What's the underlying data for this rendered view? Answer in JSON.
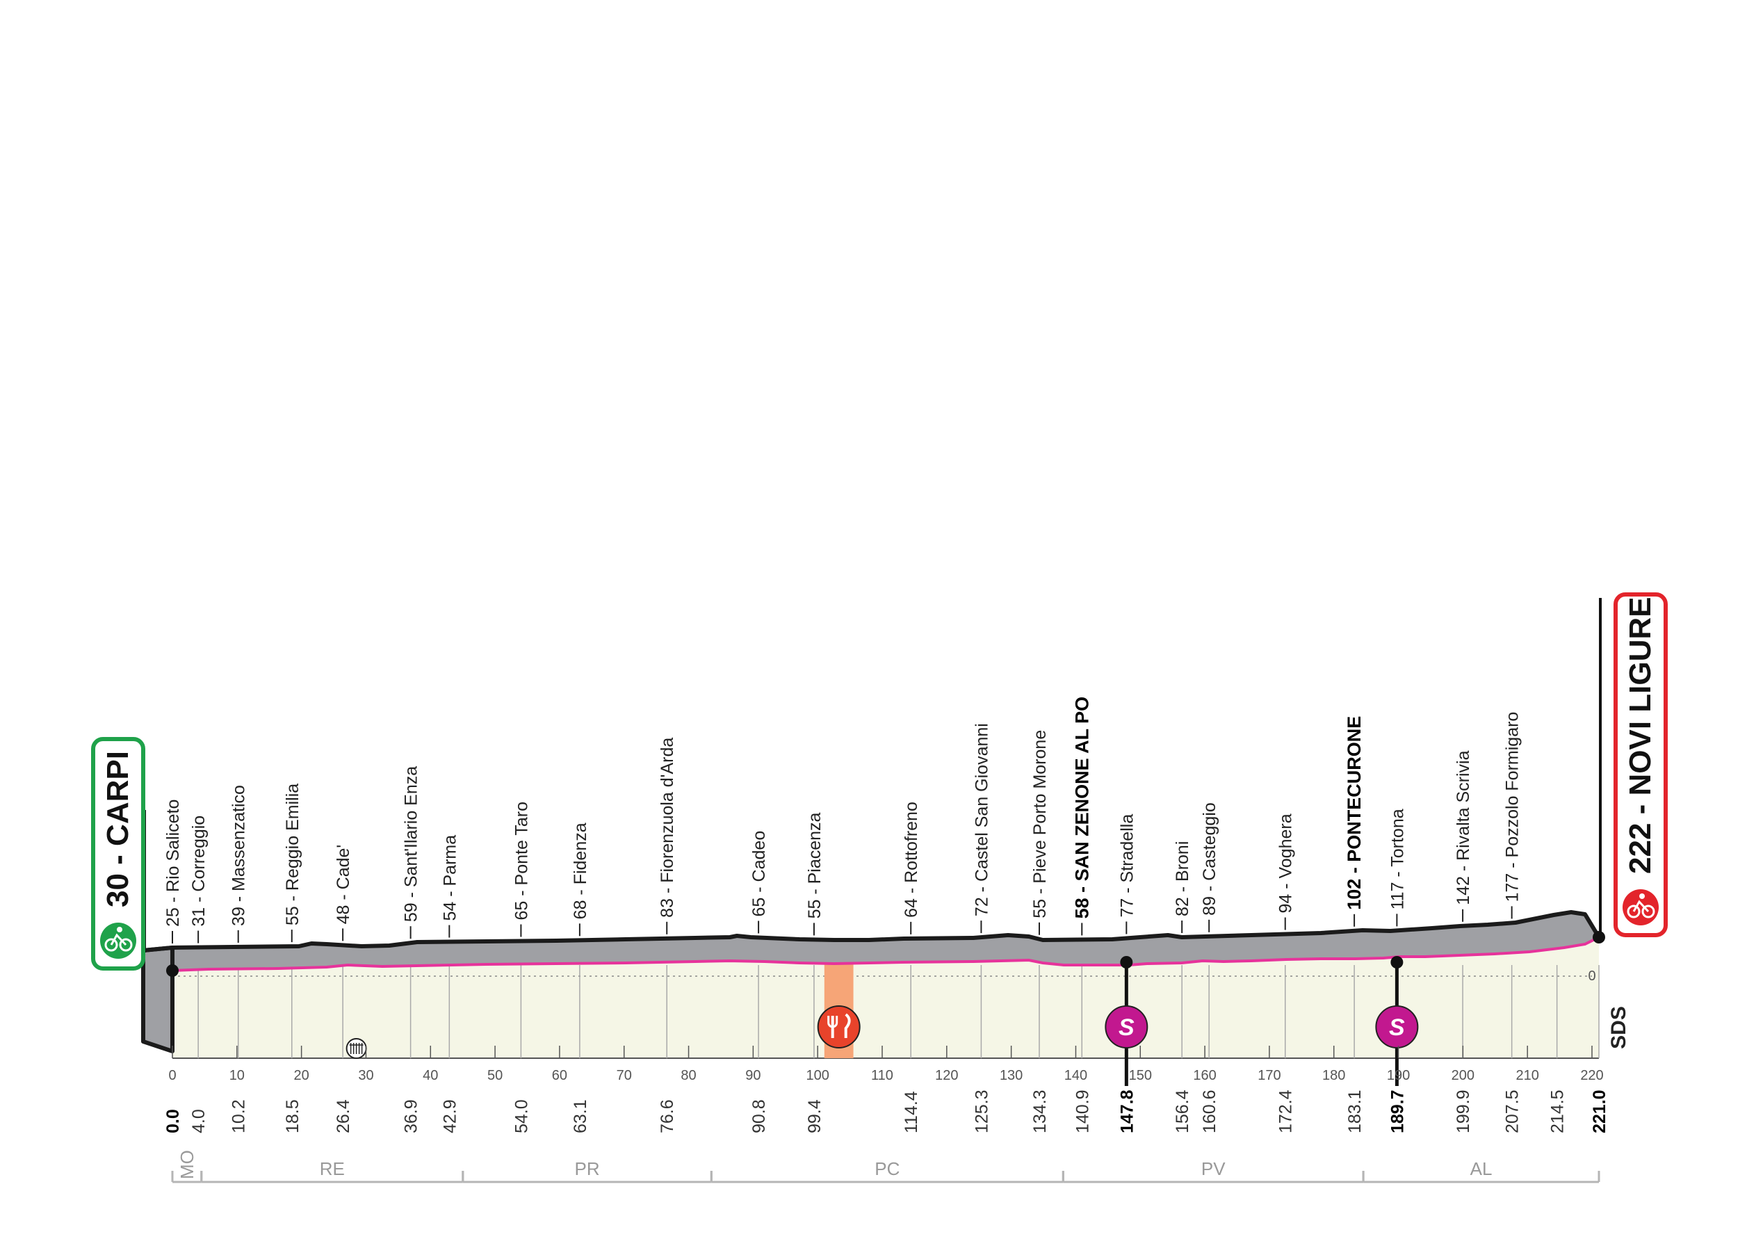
{
  "start": {
    "label": "30 - CARPI",
    "km": 0.0,
    "altitude": 30
  },
  "finish": {
    "label": "222 - NOVI LIGURE",
    "km": 221.0,
    "altitude": 222
  },
  "zero_label": "0",
  "sds_label": "SDS",
  "places": [
    {
      "km": 0.0,
      "label": "25 - Rio Saliceto",
      "bold": false
    },
    {
      "km": 4.0,
      "label": "31 - Correggio",
      "bold": false
    },
    {
      "km": 10.2,
      "label": "39 - Massenzatico",
      "bold": false
    },
    {
      "km": 18.5,
      "label": "55 - Reggio Emilia",
      "bold": false
    },
    {
      "km": 26.4,
      "label": "48 - Cade'",
      "bold": false
    },
    {
      "km": 36.9,
      "label": "59 - Sant'Ilario Enza",
      "bold": false
    },
    {
      "km": 42.9,
      "label": "54 - Parma",
      "bold": false
    },
    {
      "km": 54.0,
      "label": "65 - Ponte Taro",
      "bold": false
    },
    {
      "km": 63.1,
      "label": "68 - Fidenza",
      "bold": false
    },
    {
      "km": 76.6,
      "label": "83 - Fiorenzuola d'Arda",
      "bold": false
    },
    {
      "km": 90.8,
      "label": "65 - Cadeo",
      "bold": false
    },
    {
      "km": 99.4,
      "label": "55 - Piacenza",
      "bold": false
    },
    {
      "km": 114.4,
      "label": "64 - Rottofreno",
      "bold": false
    },
    {
      "km": 125.3,
      "label": "72 - Castel San Giovanni",
      "bold": false
    },
    {
      "km": 134.3,
      "label": "55 - Pieve Porto Morone",
      "bold": false
    },
    {
      "km": 140.9,
      "label": "58 - SAN ZENONE AL PO",
      "bold": true
    },
    {
      "km": 147.8,
      "label": "77 - Stradella",
      "bold": false
    },
    {
      "km": 156.4,
      "label": "82 - Broni",
      "bold": false
    },
    {
      "km": 160.6,
      "label": "89 - Casteggio",
      "bold": false
    },
    {
      "km": 172.4,
      "label": "94 - Voghera",
      "bold": false
    },
    {
      "km": 183.1,
      "label": "102 - PONTECURONE",
      "bold": true
    },
    {
      "km": 189.7,
      "label": "117 - Tortona",
      "bold": false
    },
    {
      "km": 199.9,
      "label": "142 - Rivalta Scrivia",
      "bold": false
    },
    {
      "km": 207.5,
      "label": "177 - Pozzolo Formigaro",
      "bold": false
    }
  ],
  "km_marks": [
    {
      "label": "0.0",
      "km": 0.0,
      "bold": true
    },
    {
      "label": "4.0",
      "km": 4.0,
      "bold": false
    },
    {
      "label": "10.2",
      "km": 10.2,
      "bold": false
    },
    {
      "label": "18.5",
      "km": 18.5,
      "bold": false
    },
    {
      "label": "26.4",
      "km": 26.4,
      "bold": false
    },
    {
      "label": "36.9",
      "km": 36.9,
      "bold": false
    },
    {
      "label": "42.9",
      "km": 42.9,
      "bold": false
    },
    {
      "label": "54.0",
      "km": 54.0,
      "bold": false
    },
    {
      "label": "63.1",
      "km": 63.1,
      "bold": false
    },
    {
      "label": "76.6",
      "km": 76.6,
      "bold": false
    },
    {
      "label": "90.8",
      "km": 90.8,
      "bold": false
    },
    {
      "label": "99.4",
      "km": 99.4,
      "bold": false
    },
    {
      "label": "114.4",
      "km": 114.4,
      "bold": false
    },
    {
      "label": "125.3",
      "km": 125.3,
      "bold": false
    },
    {
      "label": "134.3",
      "km": 134.3,
      "bold": false
    },
    {
      "label": "140.9",
      "km": 140.9,
      "bold": false
    },
    {
      "label": "147.8",
      "km": 147.8,
      "bold": true
    },
    {
      "label": "156.4",
      "km": 156.4,
      "bold": false
    },
    {
      "label": "160.6",
      "km": 160.6,
      "bold": false
    },
    {
      "label": "172.4",
      "km": 172.4,
      "bold": false
    },
    {
      "label": "183.1",
      "km": 183.1,
      "bold": false
    },
    {
      "label": "189.7",
      "km": 189.7,
      "bold": true
    },
    {
      "label": "199.9",
      "km": 199.9,
      "bold": false
    },
    {
      "label": "207.5",
      "km": 207.5,
      "bold": false
    },
    {
      "label": "214.5",
      "km": 214.5,
      "bold": false
    },
    {
      "label": "221.0",
      "km": 221.0,
      "bold": true
    }
  ],
  "distance_ticks": [
    "0",
    "10",
    "20",
    "30",
    "40",
    "50",
    "60",
    "70",
    "80",
    "90",
    "100",
    "110",
    "120",
    "130",
    "140",
    "150",
    "160",
    "170",
    "180",
    "190",
    "200",
    "210",
    "220"
  ],
  "provinces": [
    {
      "label": "MO",
      "from": 0.0,
      "to": 4.5
    },
    {
      "label": "RE",
      "from": 4.5,
      "to": 45.0
    },
    {
      "label": "PR",
      "from": 45.0,
      "to": 83.5
    },
    {
      "label": "PC",
      "from": 83.5,
      "to": 138.0
    },
    {
      "label": "PV",
      "from": 138.0,
      "to": 184.5
    },
    {
      "label": "AL",
      "from": 184.5,
      "to": 221.0
    }
  ],
  "sprints": [
    {
      "km": 147.8,
      "label": "S"
    },
    {
      "km": 189.7,
      "label": "S"
    }
  ],
  "feed_zone": {
    "from": 101.0,
    "to": 105.5
  },
  "level_crossing_km": 28.5,
  "colors": {
    "start": "#1fa24a",
    "finish": "#e3242b",
    "sprint": "#c2188f",
    "feed": "#f6a577",
    "feed_icon": "#e8432b",
    "road": "#e6339b",
    "profile_side": "#9fa0a4",
    "chart_bg": "#f5f6e6",
    "province_line": "#b5b5b5"
  }
}
